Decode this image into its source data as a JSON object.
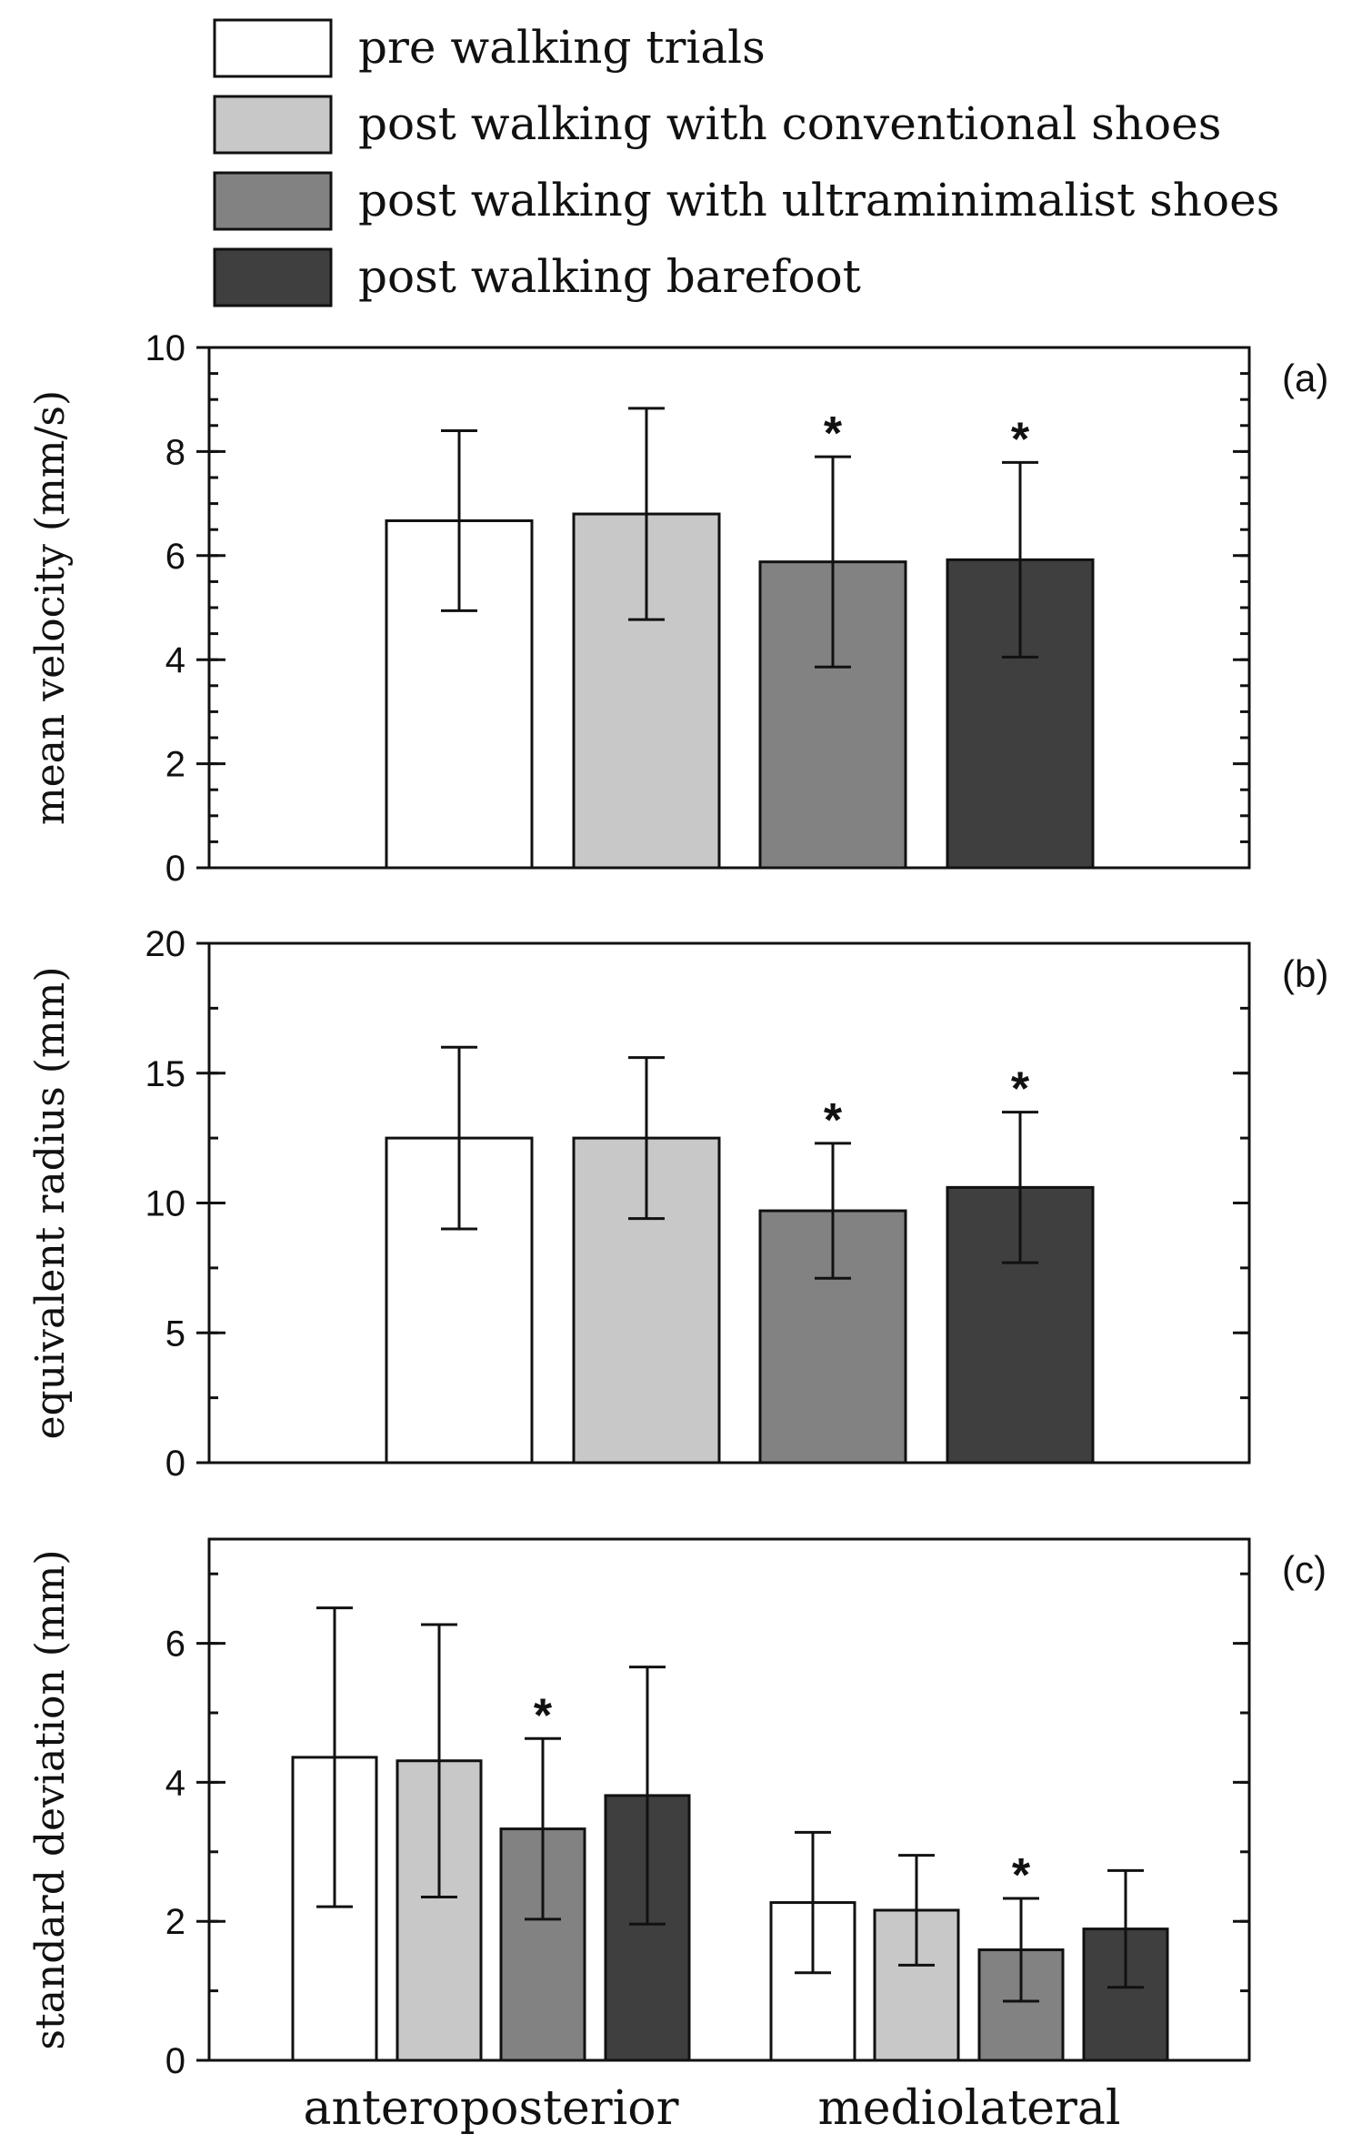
{
  "legend": [
    {
      "label": "pre walking trials",
      "color": "#ffffff"
    },
    {
      "label": "post walking with conventional shoes",
      "color": "#c8c8c8"
    },
    {
      "label": "post walking with ultraminimalist shoes",
      "color": "#828282"
    },
    {
      "label": "post walking barefoot",
      "color": "#3f3f3f"
    }
  ],
  "chart_data": [
    {
      "type": "bar",
      "panel": "(a)",
      "ylabel": "mean velocity (mm/s)",
      "ylim": [
        0,
        10
      ],
      "yticks": [
        0,
        2,
        4,
        6,
        8,
        10
      ],
      "categories": [
        ""
      ],
      "series": [
        {
          "name": "pre walking trials",
          "values": [
            6.67
          ],
          "error": [
            1.73
          ],
          "significant": [
            false
          ]
        },
        {
          "name": "post walking with conventional shoes",
          "values": [
            6.8
          ],
          "error": [
            2.03
          ],
          "significant": [
            false
          ]
        },
        {
          "name": "post walking with ultraminimalist shoes",
          "values": [
            5.88
          ],
          "error": [
            2.02
          ],
          "significant": [
            true
          ]
        },
        {
          "name": "post walking barefoot",
          "values": [
            5.92
          ],
          "error": [
            1.87
          ],
          "significant": [
            true
          ]
        }
      ]
    },
    {
      "type": "bar",
      "panel": "(b)",
      "ylabel": "equivalent radius (mm)",
      "ylim": [
        0,
        20
      ],
      "yticks": [
        0,
        5,
        10,
        15,
        20
      ],
      "categories": [
        ""
      ],
      "series": [
        {
          "name": "pre walking trials",
          "values": [
            12.5
          ],
          "error": [
            3.5
          ],
          "significant": [
            false
          ]
        },
        {
          "name": "post walking with conventional shoes",
          "values": [
            12.5
          ],
          "error": [
            3.1
          ],
          "significant": [
            false
          ]
        },
        {
          "name": "post walking with ultraminimalist shoes",
          "values": [
            9.7
          ],
          "error": [
            2.6
          ],
          "significant": [
            true
          ]
        },
        {
          "name": "post walking barefoot",
          "values": [
            10.6
          ],
          "error": [
            2.9
          ],
          "significant": [
            true
          ]
        }
      ]
    },
    {
      "type": "bar",
      "panel": "(c)",
      "ylabel": "standard deviation (mm)",
      "ylim": [
        0,
        7.5
      ],
      "yticks": [
        0,
        2,
        4,
        6
      ],
      "categories": [
        "anteroposterior",
        "mediolateral"
      ],
      "series": [
        {
          "name": "pre walking trials",
          "values": [
            4.36,
            2.27
          ],
          "error": [
            2.15,
            1.01
          ],
          "significant": [
            false,
            false
          ]
        },
        {
          "name": "post walking with conventional shoes",
          "values": [
            4.31,
            2.16
          ],
          "error": [
            1.96,
            0.79
          ],
          "significant": [
            false,
            false
          ]
        },
        {
          "name": "post walking with ultraminimalist shoes",
          "values": [
            3.33,
            1.59
          ],
          "error": [
            1.3,
            0.74
          ],
          "significant": [
            true,
            true
          ]
        },
        {
          "name": "post walking barefoot",
          "values": [
            3.81,
            1.89
          ],
          "error": [
            1.85,
            0.84
          ],
          "significant": [
            false,
            false
          ]
        }
      ]
    }
  ]
}
